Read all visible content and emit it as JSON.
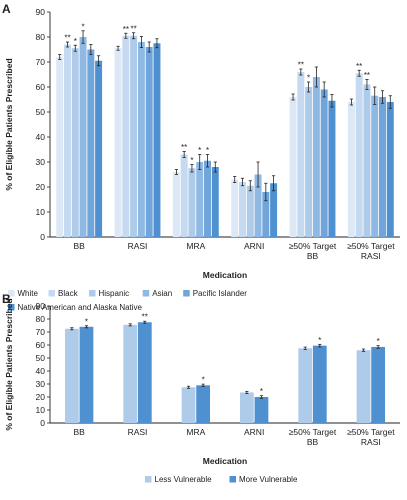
{
  "chart_data": [
    {
      "panel_label": "A",
      "type": "bar",
      "xlabel": "Medication",
      "ylabel": "% of Eligible Patients Prescribed",
      "ylim": [
        0,
        90
      ],
      "yticks": [
        0,
        10,
        20,
        30,
        40,
        50,
        60,
        70,
        80,
        90
      ],
      "categories": [
        [
          "BB"
        ],
        [
          "RASI"
        ],
        [
          "MRA"
        ],
        [
          "ARNI"
        ],
        [
          "≥50% Target",
          "BB"
        ],
        [
          "≥50% Target",
          "RASI"
        ]
      ],
      "legend_position": "bottom",
      "series": [
        {
          "name": "White",
          "color": "#dce8f5",
          "values": [
            72,
            75.5,
            26,
            23,
            56,
            54
          ],
          "errors": [
            1,
            0.8,
            1,
            1.2,
            1.2,
            1.2
          ],
          "stars": [
            "",
            "",
            "",
            "",
            "",
            ""
          ]
        },
        {
          "name": "Black",
          "color": "#c5daf0",
          "values": [
            77,
            80.5,
            33,
            22,
            66,
            65.5
          ],
          "errors": [
            1,
            1,
            1.2,
            1.5,
            1.2,
            1.2
          ],
          "stars": [
            "**",
            "**",
            "**",
            "",
            "**",
            "**"
          ]
        },
        {
          "name": "Hispanic",
          "color": "#aecbea",
          "values": [
            75.5,
            80.5,
            27.5,
            20.5,
            60,
            61
          ],
          "errors": [
            1.2,
            1.2,
            1.5,
            2,
            2,
            2
          ],
          "stars": [
            "*",
            "**",
            "*",
            "",
            "*",
            "**"
          ]
        },
        {
          "name": "Asian",
          "color": "#8fb9e2",
          "values": [
            80,
            78,
            30,
            25,
            64,
            56.5
          ],
          "errors": [
            2.5,
            2.2,
            3,
            5,
            4,
            3.5
          ],
          "stars": [
            "*",
            "",
            "*",
            "",
            "",
            ""
          ]
        },
        {
          "name": "Pacific Islander",
          "color": "#6fa5da",
          "values": [
            75,
            76,
            30.5,
            18,
            59,
            56
          ],
          "errors": [
            2,
            2,
            2.5,
            3.5,
            3,
            2.5
          ],
          "stars": [
            "",
            "",
            "*",
            "",
            "",
            ""
          ]
        },
        {
          "name": "Native American and Alaska Native",
          "color": "#4f90d0",
          "values": [
            70.5,
            77.5,
            28,
            21.5,
            54.5,
            54
          ],
          "errors": [
            2,
            1.8,
            2,
            3,
            2.5,
            2.5
          ],
          "stars": [
            "",
            "",
            "",
            "",
            "",
            ""
          ]
        }
      ]
    },
    {
      "panel_label": "B",
      "type": "bar",
      "xlabel": "Medication",
      "ylabel": "% of Eligible Patients Prescribed",
      "ylim": [
        0,
        90
      ],
      "yticks": [
        0,
        10,
        20,
        30,
        40,
        50,
        60,
        70,
        80,
        90
      ],
      "categories": [
        [
          "BB"
        ],
        [
          "RASI"
        ],
        [
          "MRA"
        ],
        [
          "ARNI"
        ],
        [
          "≥50% Target",
          "BB"
        ],
        [
          "≥50% Target",
          "RASI"
        ]
      ],
      "legend_position": "bottom",
      "series": [
        {
          "name": "Less Vulnerable",
          "color": "#aecbea",
          "values": [
            72.5,
            75.5,
            27.5,
            23.5,
            57.5,
            56
          ],
          "errors": [
            0.8,
            0.8,
            0.8,
            0.8,
            0.9,
            0.9
          ],
          "stars": [
            "",
            "",
            "",
            "",
            "",
            ""
          ]
        },
        {
          "name": "More Vulnerable",
          "color": "#4f90d0",
          "values": [
            74,
            77.5,
            29,
            20,
            59.5,
            58.5
          ],
          "errors": [
            0.8,
            0.8,
            0.9,
            1,
            1,
            1
          ],
          "stars": [
            "*",
            "**",
            "*",
            "*",
            "*",
            "*"
          ]
        }
      ]
    }
  ]
}
